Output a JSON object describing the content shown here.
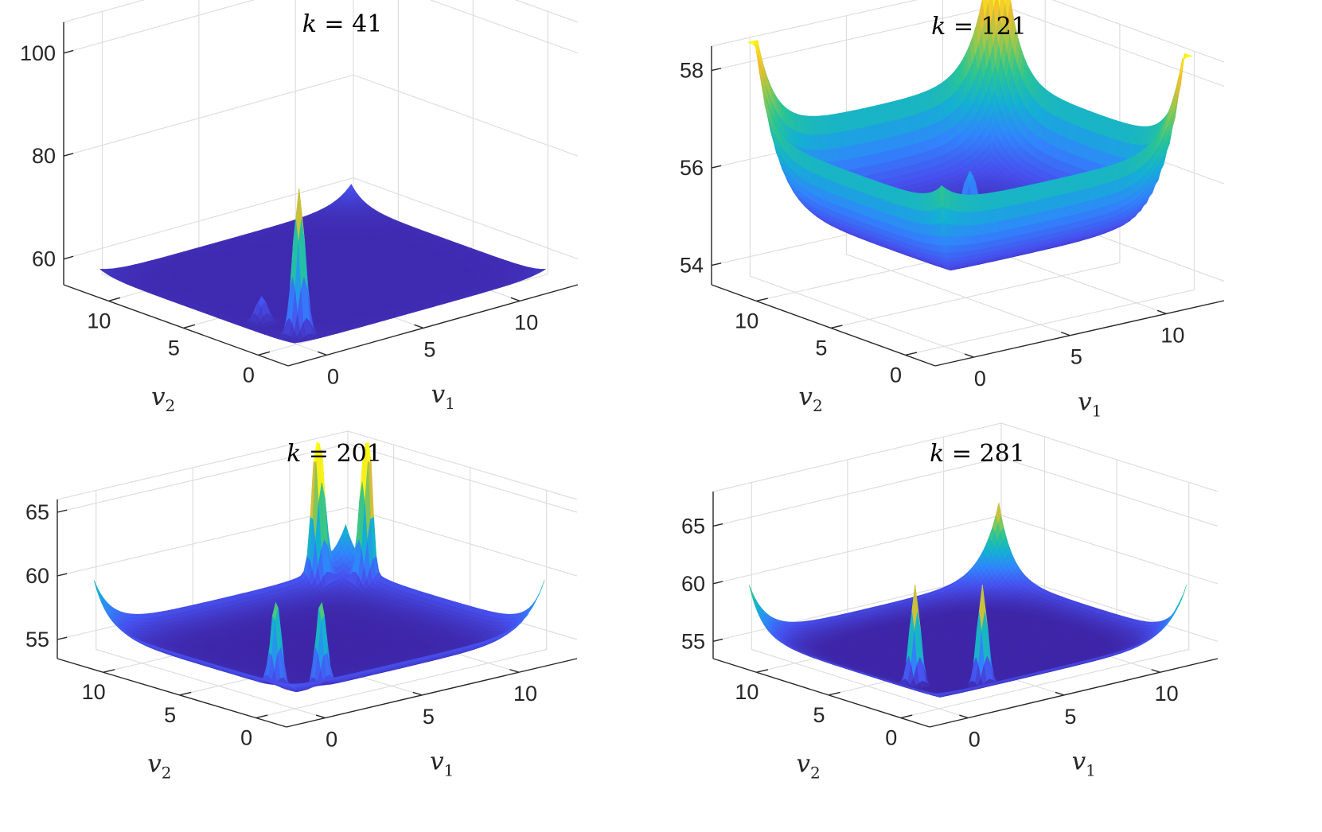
{
  "chart_data": [
    {
      "type": "surface",
      "title_var": "k",
      "title_eq": "=",
      "title_val": "41",
      "xlabel_var": "v",
      "xlabel_sub": "1",
      "ylabel_var": "v",
      "ylabel_sub": "2",
      "x_ticks": [
        "0",
        "5",
        "10"
      ],
      "y_ticks": [
        "0",
        "5",
        "10"
      ],
      "z_ticks": [
        "60",
        "80",
        "100"
      ],
      "xlim": [
        -2,
        13
      ],
      "ylim": [
        -2,
        13
      ],
      "zlim": [
        55,
        106
      ],
      "surface": {
        "base": 55.5,
        "rim": 0.3,
        "apex_corner": 4,
        "near_corner": 0.5,
        "side_corners": 1.2
      },
      "spikes": [
        {
          "v1": 0.5,
          "v2": 0.5,
          "height": 84,
          "width": 0.35
        },
        {
          "v1": 0.5,
          "v2": 3.0,
          "height": 60.5,
          "width": 0.35
        }
      ],
      "clim": [
        55,
        84
      ]
    },
    {
      "type": "surface",
      "title_var": "k",
      "title_eq": "=",
      "title_val": "121",
      "xlabel_var": "v",
      "xlabel_sub": "1",
      "ylabel_var": "v",
      "ylabel_sub": "2",
      "x_ticks": [
        "0",
        "5",
        "10"
      ],
      "y_ticks": [
        "0",
        "5",
        "10"
      ],
      "z_ticks": [
        "54",
        "56",
        "58"
      ],
      "xlim": [
        -2,
        13
      ],
      "ylim": [
        -2,
        13
      ],
      "zlim": [
        53.6,
        58.5
      ],
      "surface": {
        "base": 54.7,
        "rim": 1.9,
        "apex_corner": 4.2,
        "near_corner": 0.4,
        "side_corners": 3.3
      },
      "spikes": [
        {
          "v1": 6.0,
          "v2": 6.0,
          "height": 56.0,
          "width": 0.5
        }
      ],
      "clim": [
        54.5,
        58.5
      ]
    },
    {
      "type": "surface",
      "title_var": "k",
      "title_eq": "=",
      "title_val": "201",
      "xlabel_var": "v",
      "xlabel_sub": "1",
      "ylabel_var": "v",
      "ylabel_sub": "2",
      "x_ticks": [
        "0",
        "5",
        "10"
      ],
      "y_ticks": [
        "0",
        "5",
        "10"
      ],
      "z_ticks": [
        "55",
        "60",
        "65"
      ],
      "xlim": [
        -2,
        13
      ],
      "ylim": [
        -2,
        13
      ],
      "zlim": [
        53.5,
        66
      ],
      "surface": {
        "base": 54.0,
        "rim": 1.5,
        "apex_corner": 3.5,
        "near_corner": 0.3,
        "side_corners": 3.8
      },
      "spikes": [
        {
          "v1": 0.3,
          "v2": 1.6,
          "height": 61.0,
          "width": 0.3
        },
        {
          "v1": 1.6,
          "v2": 0.3,
          "height": 61.0,
          "width": 0.3
        },
        {
          "v1": 11.0,
          "v2": 12.4,
          "height": 65.5,
          "width": 0.35
        },
        {
          "v1": 12.4,
          "v2": 11.0,
          "height": 65.5,
          "width": 0.35
        }
      ],
      "clim": [
        54,
        64
      ]
    },
    {
      "type": "surface",
      "title_var": "k",
      "title_eq": "=",
      "title_val": "281",
      "xlabel_var": "v",
      "xlabel_sub": "1",
      "ylabel_var": "v",
      "ylabel_sub": "2",
      "x_ticks": [
        "0",
        "5",
        "10"
      ],
      "y_ticks": [
        "0",
        "5",
        "10"
      ],
      "z_ticks": [
        "55",
        "60",
        "65"
      ],
      "xlim": [
        -2,
        13
      ],
      "ylim": [
        -2,
        13
      ],
      "zlim": [
        53.5,
        68
      ],
      "surface": {
        "base": 53.8,
        "rim": 1.2,
        "apex_corner": 6.5,
        "near_corner": 0.2,
        "side_corners": 4.5
      },
      "spikes": [
        {
          "v1": 1.0,
          "v2": 3.0,
          "height": 62.5,
          "width": 0.3
        },
        {
          "v1": 3.0,
          "v2": 1.0,
          "height": 62.5,
          "width": 0.3
        }
      ],
      "clim": [
        54,
        62
      ]
    }
  ]
}
